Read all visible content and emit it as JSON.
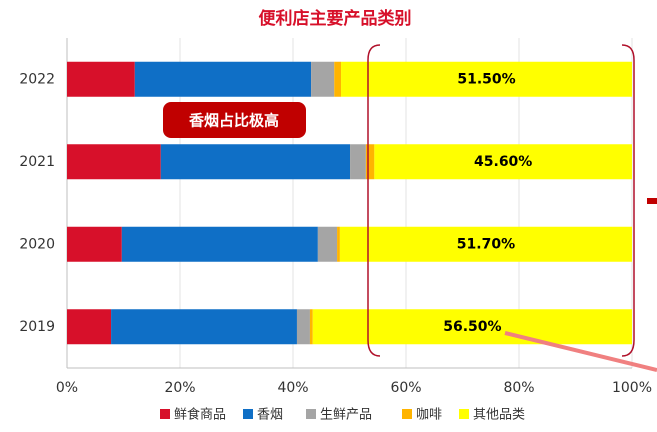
{
  "chart_data": {
    "type": "stacked_barh",
    "title": "便利店主要产品类别",
    "categories": [
      "2022",
      "2021",
      "2020",
      "2019"
    ],
    "series": [
      {
        "name": "鲜食商品",
        "color": "#d7102a",
        "values": [
          12.0,
          16.6,
          9.7,
          7.8
        ]
      },
      {
        "name": "香烟",
        "color": "#0f6fc6",
        "values": [
          31.2,
          33.5,
          34.7,
          32.9
        ]
      },
      {
        "name": "生鲜产品",
        "color": "#a5a5a5",
        "values": [
          4.1,
          2.8,
          3.4,
          2.3
        ]
      },
      {
        "name": "咖啡",
        "color": "#ffb400",
        "values": [
          1.2,
          1.5,
          0.5,
          0.5
        ]
      },
      {
        "name": "其他品类",
        "color": "#ffff00",
        "values": [
          51.5,
          45.6,
          51.7,
          56.5
        ],
        "value_labels": [
          "51.50%",
          "45.60%",
          "51.70%",
          "56.50%"
        ]
      }
    ],
    "xlim": [
      0,
      100
    ],
    "xticks": [
      {
        "value": 0,
        "label": "0%"
      },
      {
        "value": 20,
        "label": "20%"
      },
      {
        "value": 40,
        "label": "40%"
      },
      {
        "value": 60,
        "label": "60%"
      },
      {
        "value": 80,
        "label": "80%"
      },
      {
        "value": 100,
        "label": "100%"
      }
    ],
    "grid": true,
    "annotations": [
      "香烟占比极高"
    ]
  }
}
